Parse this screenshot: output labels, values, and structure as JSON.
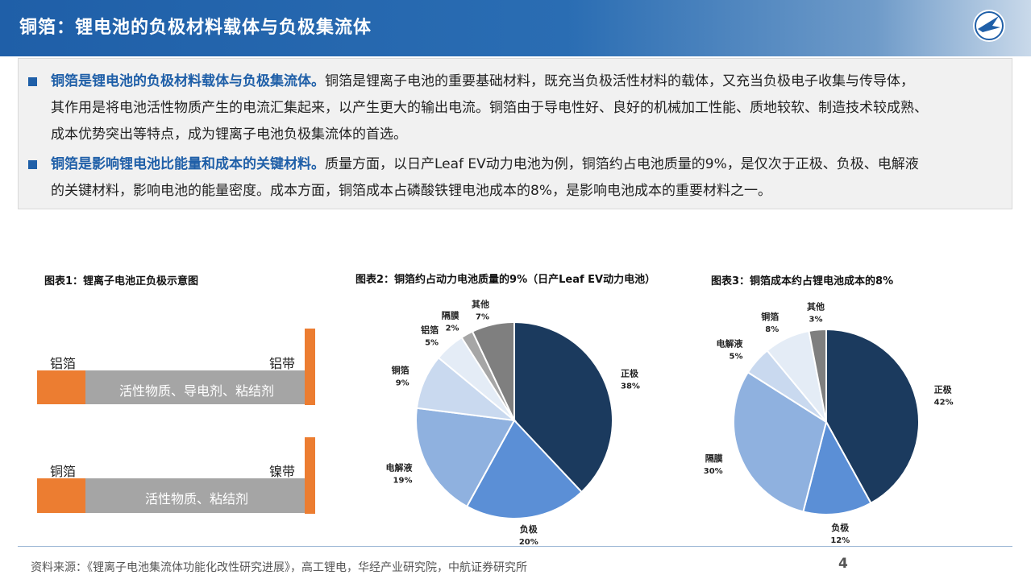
{
  "header": {
    "title": "铜箔：锂电池的负极材料载体与负极集流体"
  },
  "info": {
    "p1_highlight": "铜箔是锂电池的负极材料载体与负极集流体。",
    "p1_line1": "铜箔是锂离子电池的重要基础材料，既充当负极活性材料的载体，又充当负极电子收集与传导体，",
    "p1_line2": "其作用是将电池活性物质产生的电流汇集起来，以产生更大的输出电流。铜箔由于导电性好、良好的机械加工性能、质地较软、制造技术较成熟、",
    "p1_line3": "成本优势突出等特点，成为锂离子电池负极集流体的首选。",
    "p2_highlight": "铜箔是影响锂电池比能量和成本的关键材料。",
    "p2_line1": "质量方面，以日产Leaf EV动力电池为例，铜箔约占电池质量的9%，是仅次于正极、负极、电解液",
    "p2_line2": "的关键材料，影响电池的能量密度。成本方面，铜箔成本占磷酸铁锂电池成本的8%，是影响电池成本的重要材料之一。"
  },
  "fig1": {
    "title": "图表1：锂离子电池正负极示意图",
    "top": {
      "left_label": "铝箔",
      "right_label": "铝带",
      "bar_text": "活性物质、导电剂、粘结剂"
    },
    "bottom": {
      "left_label": "铜箔",
      "right_label": "镍带",
      "bar_text": "活性物质、粘结剂"
    }
  },
  "fig2": {
    "title": "图表2：铜箔约占动力电池质量的9%（日产Leaf EV动力电池）"
  },
  "fig3": {
    "title": "图表3：铜箔成本约占锂电池成本的8%"
  },
  "chart_data": [
    {
      "type": "pie",
      "title": "图表2：铜箔约占动力电池质量的9%（日产Leaf EV动力电池）",
      "categories": [
        "正极",
        "负极",
        "电解液",
        "铜箔",
        "铝箔",
        "隔膜",
        "其他"
      ],
      "values": [
        38,
        20,
        19,
        9,
        5,
        2,
        7
      ],
      "labels": [
        "38%",
        "20%",
        "19%",
        "9%",
        "5%",
        "2%",
        "7%"
      ],
      "colors": [
        "#1b3a5e",
        "#5b8fd6",
        "#8fb1df",
        "#c9d9ef",
        "#e4ecf6",
        "#a6a6a6",
        "#7f7f7f"
      ]
    },
    {
      "type": "pie",
      "title": "图表3：铜箔成本约占锂电池成本的8%",
      "categories": [
        "正极",
        "负极",
        "隔膜",
        "电解液",
        "铜箔",
        "其他"
      ],
      "values": [
        42,
        12,
        30,
        5,
        8,
        3
      ],
      "labels": [
        "42%",
        "12%",
        "30%",
        "5%",
        "8%",
        "3%"
      ],
      "colors": [
        "#1b3a5e",
        "#5b8fd6",
        "#8fb1df",
        "#c9d9ef",
        "#e4ecf6",
        "#7f7f7f"
      ]
    }
  ],
  "footer": {
    "source": "资料来源：《锂离子电池集流体功能化改性研究进展》，高工锂电，华经产业研究院，中航证券研究所",
    "page": "4"
  }
}
